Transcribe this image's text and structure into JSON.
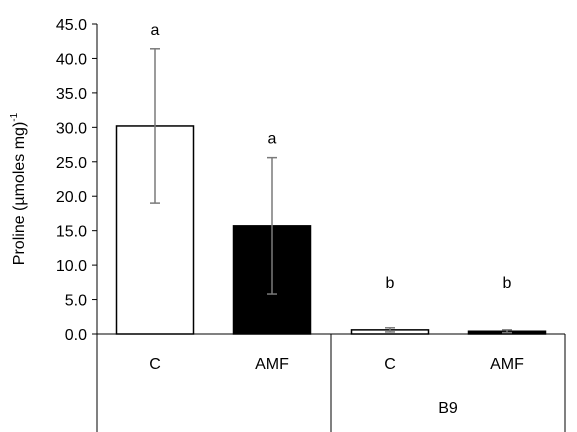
{
  "chart_data": {
    "type": "bar",
    "title": "",
    "xlabel": "",
    "ylabel": "Proline (µmoles mg)",
    "ylabel_superscript": "-1",
    "ylim": [
      0,
      45
    ],
    "yticks": [
      "0.0",
      "5.0",
      "10.0",
      "15.0",
      "20.0",
      "25.0",
      "30.0",
      "35.0",
      "40.0",
      "45.0"
    ],
    "groups": [
      {
        "label": "",
        "categories": [
          "C",
          "AMF"
        ]
      },
      {
        "label": "B9",
        "categories": [
          "C",
          "AMF"
        ]
      }
    ],
    "bars": [
      {
        "group": 0,
        "category": "C",
        "value": 30.2,
        "error": 11.2,
        "letter": "a",
        "fill": "#ffffff"
      },
      {
        "group": 0,
        "category": "AMF",
        "value": 15.7,
        "error": 9.9,
        "letter": "a",
        "fill": "#000000"
      },
      {
        "group": 1,
        "category": "C",
        "value": 0.6,
        "error": 0.3,
        "letter": "b",
        "fill": "#ffffff"
      },
      {
        "group": 1,
        "category": "AMF",
        "value": 0.4,
        "error": 0.2,
        "letter": "b",
        "fill": "#000000"
      }
    ],
    "grid": false,
    "legend": "none"
  }
}
